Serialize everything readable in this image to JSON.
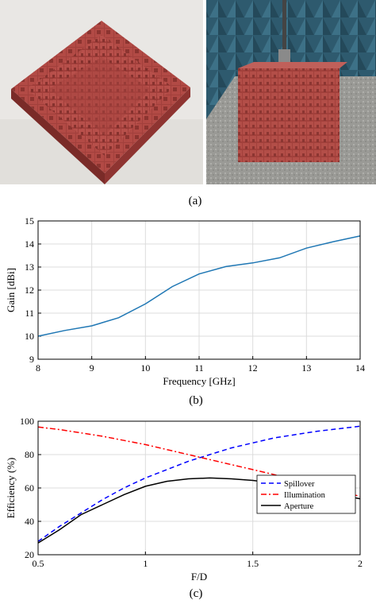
{
  "figure": {
    "panel_a": {
      "caption": "(a)"
    },
    "panel_b": {
      "caption": "(b)"
    },
    "panel_c": {
      "caption": "(c)"
    }
  },
  "chart_data": [
    {
      "type": "line",
      "panel": "(b)",
      "title": "",
      "xlabel": "Frequency [GHz]",
      "ylabel": "Gain [dBi]",
      "xlim": [
        8,
        14
      ],
      "ylim": [
        9,
        15
      ],
      "xticks": [
        "8",
        "9",
        "10",
        "11",
        "12",
        "13",
        "14"
      ],
      "yticks": [
        "9",
        "10",
        "11",
        "12",
        "13",
        "14",
        "15"
      ],
      "grid": true,
      "series": [
        {
          "color": "#1f77b4",
          "x": [
            8,
            8.5,
            9,
            9.5,
            10,
            10.5,
            11,
            11.5,
            12,
            12.5,
            13,
            13.5,
            14
          ],
          "y": [
            10.0,
            10.25,
            10.45,
            10.8,
            11.4,
            12.15,
            12.7,
            13.02,
            13.18,
            13.4,
            13.82,
            14.1,
            14.35
          ]
        }
      ]
    },
    {
      "type": "line",
      "panel": "(c)",
      "title": "",
      "xlabel": "F/D",
      "ylabel": "Efficiency (%)",
      "xlim": [
        0.5,
        2
      ],
      "ylim": [
        20,
        100
      ],
      "xticks": [
        "0.5",
        "1",
        "1.5",
        "2"
      ],
      "yticks": [
        "20",
        "40",
        "60",
        "80",
        "100"
      ],
      "grid": true,
      "legend_position": "lower-right",
      "series": [
        {
          "name": "Spillover",
          "color": "#0000ff",
          "dash": "dashed",
          "x": [
            0.5,
            0.6,
            0.7,
            0.8,
            0.9,
            1.0,
            1.1,
            1.2,
            1.3,
            1.4,
            1.5,
            1.6,
            1.7,
            1.8,
            1.9,
            2.0
          ],
          "y": [
            28,
            37,
            45,
            53,
            60,
            66,
            71,
            76,
            80,
            84,
            87,
            90,
            92,
            94,
            95.5,
            97
          ]
        },
        {
          "name": "Illumination",
          "color": "#ff0000",
          "dash": "dashdot",
          "x": [
            0.5,
            0.6,
            0.7,
            0.8,
            0.9,
            1.0,
            1.1,
            1.2,
            1.3,
            1.4,
            1.5,
            1.6,
            1.7,
            1.8,
            1.9,
            2.0
          ],
          "y": [
            96.5,
            95,
            93,
            91,
            88.5,
            86,
            83,
            80,
            77,
            74,
            71,
            68,
            64,
            61,
            58,
            55
          ]
        },
        {
          "name": "Aperture",
          "color": "#000000",
          "dash": "solid",
          "x": [
            0.5,
            0.6,
            0.7,
            0.8,
            0.9,
            1.0,
            1.1,
            1.2,
            1.3,
            1.4,
            1.5,
            1.6,
            1.7,
            1.8,
            1.9,
            2.0
          ],
          "y": [
            27,
            35,
            44,
            50,
            56,
            61,
            64,
            65.5,
            66,
            65.5,
            64.5,
            63,
            61,
            58.5,
            56,
            53.5
          ]
        }
      ]
    }
  ]
}
